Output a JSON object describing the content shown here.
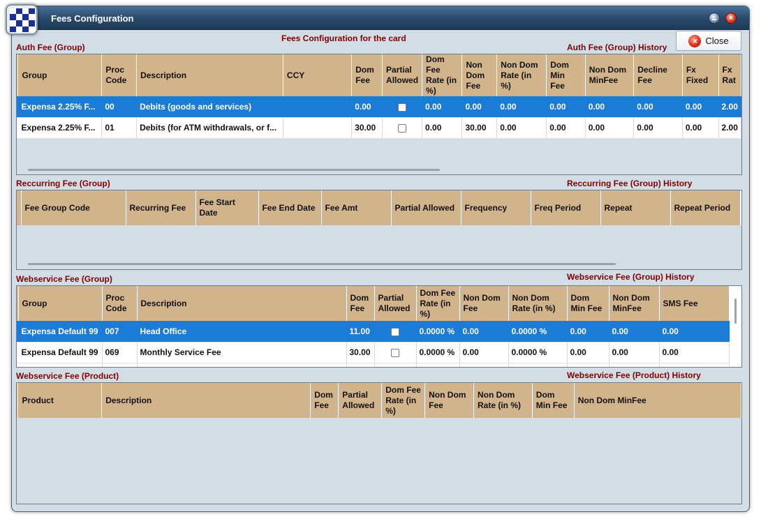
{
  "window": {
    "title": "Fees Configuration"
  },
  "header": {
    "subtitle": "Fees Configuration for the card",
    "close_label": "Close"
  },
  "auth_fee": {
    "caption": "Auth Fee (Group)",
    "history": "Auth Fee (Group) History",
    "columns": [
      "Group",
      "Proc Code",
      "Description",
      "CCY",
      "Dom Fee",
      "Partial Allowed",
      "Dom Fee Rate (in %)",
      "Non Dom Fee",
      "Non Dom Rate (in %)",
      "Dom Min Fee",
      "Non Dom MinFee",
      "Decline Fee",
      "Fx Fixed",
      "Fx Rat"
    ],
    "rows": [
      {
        "group": "Expensa 2.25% F...",
        "proc_code": "00",
        "description": "Debits (goods and services)",
        "ccy": "",
        "dom_fee": "0.00",
        "partial": false,
        "dom_fee_rate": "0.00",
        "non_dom_fee": "0.00",
        "non_dom_rate": "0.00",
        "dom_min_fee": "0.00",
        "non_dom_minfee": "0.00",
        "decline_fee": "0.00",
        "fx_fixed": "0.00",
        "fx_rate": "2.00",
        "selected": true
      },
      {
        "group": "Expensa 2.25% F...",
        "proc_code": "01",
        "description": "Debits (for ATM withdrawals, or f...",
        "ccy": "",
        "dom_fee": "30.00",
        "partial": false,
        "dom_fee_rate": "0.00",
        "non_dom_fee": "30.00",
        "non_dom_rate": "0.00",
        "dom_min_fee": "0.00",
        "non_dom_minfee": "0.00",
        "decline_fee": "0.00",
        "fx_fixed": "0.00",
        "fx_rate": "2.00",
        "selected": false
      }
    ]
  },
  "recurring_fee": {
    "caption": "Reccurring Fee (Group)",
    "history": "Reccurring Fee (Group) History",
    "columns": [
      "Fee Group Code",
      "Recurring Fee",
      "Fee Start Date",
      "Fee End Date",
      "Fee Amt",
      "Partial Allowed",
      "Frequency",
      "Freq Period",
      "Repeat",
      "Repeat Period"
    ]
  },
  "webservice_group": {
    "caption": "Webservice Fee (Group)",
    "history": "Webservice Fee (Group) History",
    "columns": [
      "Group",
      "Proc Code",
      "Description",
      "Dom Fee",
      "Partial Allowed",
      "Dom Fee Rate (in %)",
      "Non Dom Fee",
      "Non Dom Rate (in %)",
      "Dom Min Fee",
      "Non Dom MinFee",
      "SMS Fee"
    ],
    "rows": [
      {
        "group": "Expensa Default 99",
        "proc_code": "007",
        "description": "Head Office",
        "dom_fee": "11.00",
        "partial": false,
        "dom_fee_rate": "0.0000 %",
        "non_dom_fee": "0.00",
        "non_dom_rate": "0.0000 %",
        "dom_min_fee": "0.00",
        "non_dom_minfee": "0.00",
        "sms_fee": "0.00",
        "selected": true
      },
      {
        "group": "Expensa Default 99",
        "proc_code": "069",
        "description": "Monthly Service Fee",
        "dom_fee": "30.00",
        "partial": false,
        "dom_fee_rate": "0.0000 %",
        "non_dom_fee": "0.00",
        "non_dom_rate": "0.0000 %",
        "dom_min_fee": "0.00",
        "non_dom_minfee": "0.00",
        "sms_fee": "0.00",
        "selected": false
      }
    ]
  },
  "webservice_product": {
    "caption": "Webservice Fee (Product)",
    "history": "Webservice Fee (Product) History",
    "columns": [
      "Product",
      "Description",
      "Dom Fee",
      "Partial Allowed",
      "Dom Fee Rate (in %)",
      "Non Dom Fee",
      "Non Dom Rate (in %)",
      "Dom Min Fee",
      "Non Dom MinFee"
    ]
  }
}
